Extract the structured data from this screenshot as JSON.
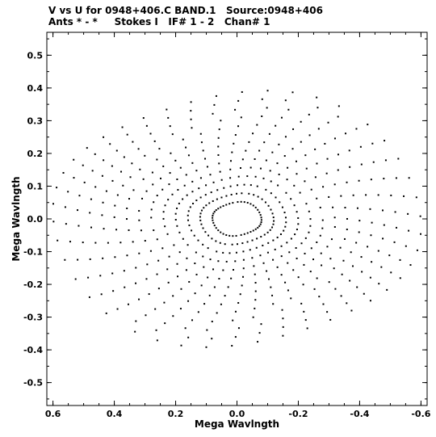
{
  "title_line1": "V vs U for 0948+406.C BAND.1   Source:0948+406",
  "title_line2": "Ants * - *     Stokes I   IF# 1 - 2   Chan# 1",
  "chart_data": {
    "type": "scatter",
    "title": "V vs U for 0948+406.C BAND.1   Source:0948+406",
    "subtitle": "Ants * - *     Stokes I   IF# 1 - 2   Chan# 1",
    "xlabel": "Mega Wavlngth",
    "ylabel": "Mega Wavlngth",
    "xlim": [
      0.62,
      -0.62
    ],
    "ylim": [
      -0.57,
      0.57
    ],
    "x_ticks": [
      0.6,
      0.4,
      0.2,
      0.0,
      -0.2,
      -0.4,
      -0.6
    ],
    "x_tick_labels": [
      "0.6",
      "0.4",
      "0.2",
      "0.0",
      "-0.2",
      "-0.4",
      "-0.6"
    ],
    "y_ticks": [
      0.5,
      0.4,
      0.3,
      0.2,
      0.1,
      0.0,
      -0.1,
      -0.2,
      -0.3,
      -0.4,
      -0.5
    ],
    "y_tick_labels": [
      "0.5",
      "0.4",
      "0.3",
      "0.2",
      "0.1",
      "0.0",
      "-0.1",
      "-0.2",
      "-0.3",
      "-0.4",
      "-0.5"
    ],
    "grid": false,
    "marker_color": "#000000",
    "tracks": [
      {
        "s": 0.08,
        "a": 0.0
      },
      {
        "s": 0.12,
        "a": 0.3
      },
      {
        "s": 0.16,
        "a": 0.6
      },
      {
        "s": 0.2,
        "a": 0.9
      },
      {
        "s": 0.24,
        "a": 1.2
      },
      {
        "s": 0.28,
        "a": 1.5
      },
      {
        "s": 0.32,
        "a": 1.8
      },
      {
        "s": 0.36,
        "a": 2.1
      },
      {
        "s": 0.4,
        "a": 2.4
      },
      {
        "s": 0.44,
        "a": 2.7
      },
      {
        "s": 0.48,
        "a": 3.0
      },
      {
        "s": 0.52,
        "a": 3.3
      },
      {
        "s": 0.56,
        "a": 3.6
      },
      {
        "s": 0.6,
        "a": 3.9
      }
    ]
  }
}
